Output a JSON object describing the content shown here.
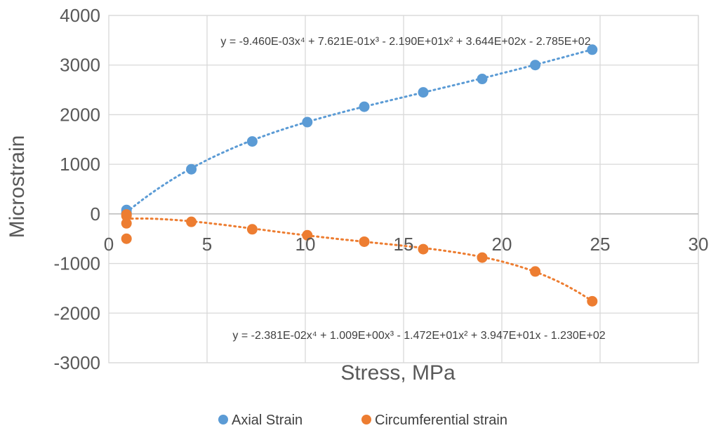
{
  "chart_data": {
    "type": "scatter",
    "xlabel": "Stress, MPa",
    "ylabel": "Microstrain",
    "xlim": [
      0,
      30
    ],
    "ylim": [
      -3000,
      4000
    ],
    "x_ticks": [
      0,
      5,
      10,
      15,
      20,
      25,
      30
    ],
    "y_ticks": [
      -3000,
      -2000,
      -1000,
      0,
      1000,
      2000,
      3000,
      4000
    ],
    "grid": true,
    "legend_position": "bottom",
    "series": [
      {
        "name": "Axial Strain",
        "color": "#5B9BD5",
        "points": [
          {
            "x": 0.9,
            "y": 80
          },
          {
            "x": 0.9,
            "y": 30
          },
          {
            "x": 0.9,
            "y": 10
          },
          {
            "x": 4.2,
            "y": 900
          },
          {
            "x": 7.3,
            "y": 1460
          },
          {
            "x": 10.1,
            "y": 1850
          },
          {
            "x": 13.0,
            "y": 2160
          },
          {
            "x": 16.0,
            "y": 2450
          },
          {
            "x": 19.0,
            "y": 2720
          },
          {
            "x": 21.7,
            "y": 3000
          },
          {
            "x": 24.6,
            "y": 3310
          }
        ],
        "trendline": {
          "type": "poly4",
          "coefficients": [
            -0.00946,
            0.7621,
            -21.9,
            364.4,
            -278.5
          ],
          "x_range": [
            0.9,
            24.6
          ],
          "equation": "y = -9.460E-03x⁴ + 7.621E-01x³ - 2.190E+01x² + 3.644E+02x - 2.785E+02"
        }
      },
      {
        "name": "Circumferential strain",
        "color": "#ED7D31",
        "points": [
          {
            "x": 0.9,
            "y": -10
          },
          {
            "x": 0.9,
            "y": -40
          },
          {
            "x": 0.9,
            "y": -190
          },
          {
            "x": 0.9,
            "y": -500
          },
          {
            "x": 4.2,
            "y": -160
          },
          {
            "x": 7.3,
            "y": -310
          },
          {
            "x": 10.1,
            "y": -430
          },
          {
            "x": 13.0,
            "y": -560
          },
          {
            "x": 16.0,
            "y": -710
          },
          {
            "x": 19.0,
            "y": -880
          },
          {
            "x": 21.7,
            "y": -1160
          },
          {
            "x": 24.6,
            "y": -1760
          }
        ],
        "trendline": {
          "type": "poly4",
          "coefficients": [
            -0.02381,
            1.009,
            -14.72,
            39.47,
            -123.0
          ],
          "x_range": [
            0.9,
            24.6
          ],
          "equation": "y = -2.381E-02x⁴ + 1.009E+00x³ - 1.472E+01x² + 3.947E+01x - 1.230E+02"
        }
      }
    ]
  }
}
